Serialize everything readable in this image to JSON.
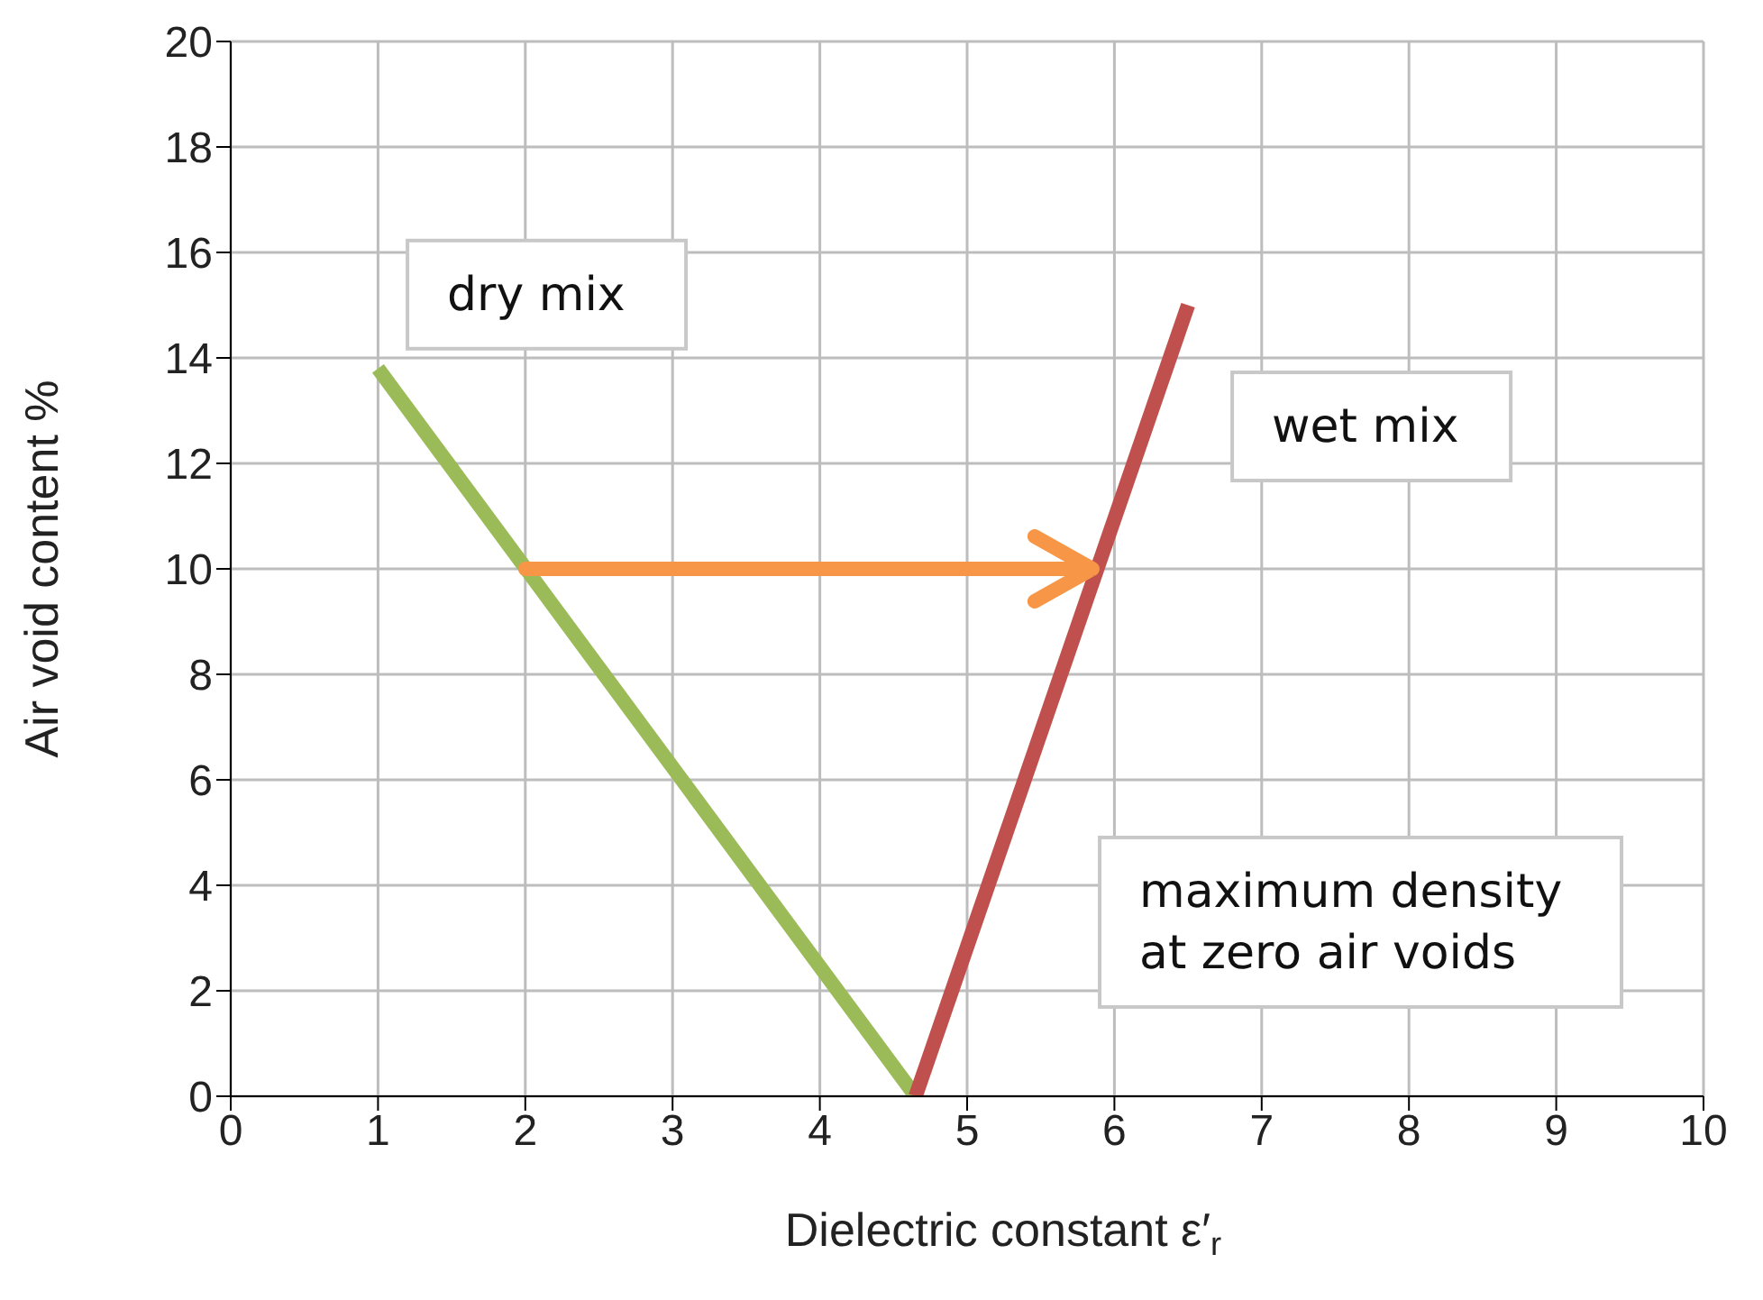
{
  "chart_data": {
    "type": "line",
    "xlabel": "Dielectric constant ε′$_{r}$",
    "ylabel": "Air void content %",
    "xlim": [
      0,
      10
    ],
    "xticks": [
      0,
      1,
      2,
      3,
      4,
      5,
      6,
      7,
      8,
      9,
      10
    ],
    "ylim": [
      0,
      20
    ],
    "yticks": [
      0,
      2,
      4,
      6,
      8,
      10,
      12,
      14,
      16,
      18,
      20
    ],
    "grid": true,
    "marker": "none",
    "line_style": "solid",
    "series": [
      {
        "color": "#9bbb59",
        "x": [
          1,
          4.65
        ],
        "values": [
          13.8,
          0
        ]
      },
      {
        "color": "#c0504d",
        "x": [
          4.65,
          6.5
        ],
        "values": [
          0,
          15
        ]
      }
    ],
    "annotations": [
      "dry mix",
      "wet mix",
      "maximum density\nat zero air voids"
    ]
  }
}
